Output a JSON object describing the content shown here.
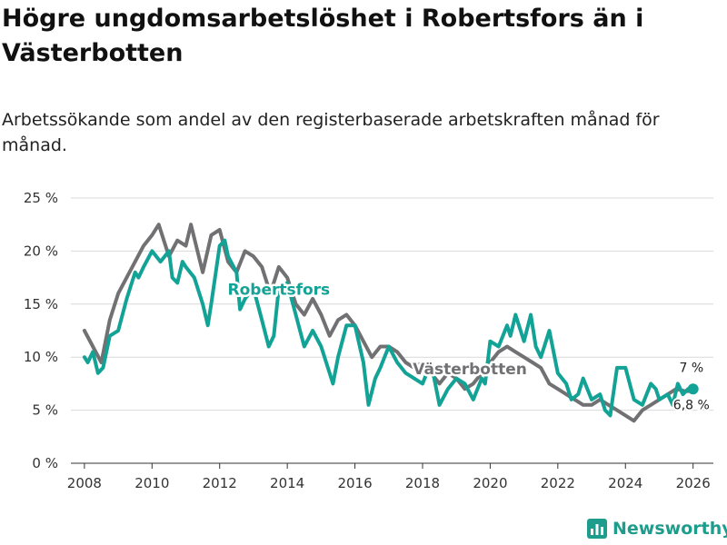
{
  "title": "Högre ungdomsarbetslöshet i Robertsfors än i Västerbotten",
  "subtitle": "Arbetssökande som andel av den registerbaserade arbetskraften månad för månad.",
  "brand": {
    "name": "Newsworthy",
    "icon": "bar-chart-logo-icon"
  },
  "colors": {
    "robertsfors": "#13a396",
    "vasterbotten": "#717073",
    "grid": "#d9d9d9",
    "axis": "#333333"
  },
  "chart_data": {
    "type": "line",
    "title": "Högre ungdomsarbetslöshet i Robertsfors än i Västerbotten",
    "xlabel": "",
    "ylabel": "",
    "xlim": [
      2007.6,
      2026.6
    ],
    "ylim": [
      0,
      25
    ],
    "x_ticks": [
      2008,
      2010,
      2012,
      2014,
      2016,
      2018,
      2020,
      2022,
      2024,
      2026
    ],
    "x_tick_labels": [
      "2008",
      "2010",
      "2012",
      "2014",
      "2016",
      "2018",
      "2020",
      "2022",
      "2024",
      "2026"
    ],
    "y_ticks": [
      0,
      5,
      10,
      15,
      20,
      25
    ],
    "y_tick_labels": [
      "0 %",
      "5 %",
      "10 %",
      "15 %",
      "20 %",
      "25 %"
    ],
    "grid": true,
    "legend": "inline labels",
    "series": [
      {
        "name": "Västerbotten",
        "key": "vasterbotten",
        "label": "Västerbotten",
        "end_label": "6,8 %",
        "x": [
          2008.0,
          2008.25,
          2008.5,
          2008.75,
          2009.0,
          2009.25,
          2009.5,
          2009.75,
          2010.0,
          2010.2,
          2010.5,
          2010.75,
          2011.0,
          2011.15,
          2011.5,
          2011.75,
          2012.0,
          2012.25,
          2012.5,
          2012.75,
          2013.0,
          2013.25,
          2013.5,
          2013.75,
          2014.0,
          2014.25,
          2014.5,
          2014.75,
          2015.0,
          2015.25,
          2015.5,
          2015.75,
          2016.0,
          2016.25,
          2016.5,
          2016.75,
          2017.0,
          2017.25,
          2017.5,
          2017.75,
          2018.0,
          2018.25,
          2018.5,
          2018.75,
          2019.0,
          2019.25,
          2019.5,
          2019.75,
          2020.0,
          2020.25,
          2020.5,
          2020.75,
          2021.0,
          2021.25,
          2021.5,
          2021.75,
          2022.0,
          2022.25,
          2022.5,
          2022.75,
          2023.0,
          2023.25,
          2023.5,
          2023.75,
          2024.0,
          2024.25,
          2024.5,
          2024.75,
          2025.0,
          2025.25,
          2025.5,
          2025.75,
          2026.0
        ],
        "values": [
          12.5,
          11.0,
          9.5,
          13.5,
          16.0,
          17.5,
          19.0,
          20.5,
          21.5,
          22.5,
          19.5,
          21.0,
          20.5,
          22.5,
          18.0,
          21.5,
          22.0,
          19.0,
          18.0,
          20.0,
          19.5,
          18.5,
          16.0,
          18.5,
          17.5,
          15.0,
          14.0,
          15.5,
          14.0,
          12.0,
          13.5,
          14.0,
          13.0,
          11.5,
          10.0,
          11.0,
          11.0,
          10.5,
          9.5,
          9.0,
          9.5,
          8.5,
          7.5,
          8.5,
          8.0,
          7.0,
          7.5,
          8.5,
          9.5,
          10.5,
          11.0,
          10.5,
          10.0,
          9.5,
          9.0,
          7.5,
          7.0,
          6.5,
          6.0,
          5.5,
          5.5,
          6.0,
          5.5,
          5.0,
          4.5,
          4.0,
          5.0,
          5.5,
          6.0,
          6.5,
          7.0,
          6.8,
          6.8
        ]
      },
      {
        "name": "Robertsfors",
        "key": "robertsfors",
        "label": "Robertsfors",
        "end_label": "7 %",
        "x": [
          2008.0,
          2008.1,
          2008.25,
          2008.4,
          2008.55,
          2008.75,
          2009.0,
          2009.25,
          2009.5,
          2009.6,
          2009.75,
          2010.0,
          2010.25,
          2010.5,
          2010.6,
          2010.75,
          2010.9,
          2011.0,
          2011.25,
          2011.5,
          2011.65,
          2011.75,
          2012.0,
          2012.15,
          2012.25,
          2012.5,
          2012.6,
          2012.75,
          2013.0,
          2013.25,
          2013.45,
          2013.6,
          2013.75,
          2014.0,
          2014.25,
          2014.5,
          2014.75,
          2015.0,
          2015.25,
          2015.35,
          2015.5,
          2015.75,
          2016.0,
          2016.25,
          2016.4,
          2016.6,
          2016.75,
          2017.0,
          2017.25,
          2017.5,
          2017.75,
          2018.0,
          2018.25,
          2018.5,
          2018.75,
          2019.0,
          2019.25,
          2019.5,
          2019.75,
          2019.85,
          2020.0,
          2020.25,
          2020.5,
          2020.6,
          2020.75,
          2021.0,
          2021.2,
          2021.35,
          2021.5,
          2021.75,
          2022.0,
          2022.25,
          2022.4,
          2022.6,
          2022.75,
          2023.0,
          2023.25,
          2023.4,
          2023.55,
          2023.75,
          2024.0,
          2024.25,
          2024.5,
          2024.75,
          2024.9,
          2025.0,
          2025.25,
          2025.4,
          2025.55,
          2025.7,
          2025.85,
          2026.0
        ],
        "values": [
          10.0,
          9.5,
          10.5,
          8.5,
          9.0,
          12.0,
          12.5,
          15.5,
          18.0,
          17.5,
          18.5,
          20.0,
          19.0,
          20.0,
          17.5,
          17.0,
          19.0,
          18.5,
          17.5,
          15.0,
          13.0,
          15.0,
          20.5,
          21.0,
          19.5,
          18.0,
          14.5,
          15.5,
          16.5,
          13.5,
          11.0,
          12.0,
          16.5,
          17.0,
          14.0,
          11.0,
          12.5,
          11.0,
          8.5,
          7.5,
          10.0,
          13.0,
          13.0,
          9.5,
          5.5,
          8.0,
          9.0,
          11.0,
          9.5,
          8.5,
          8.0,
          7.5,
          9.5,
          5.5,
          7.0,
          8.0,
          7.5,
          6.0,
          8.0,
          7.5,
          11.5,
          11.0,
          13.0,
          12.0,
          14.0,
          11.5,
          14.0,
          11.0,
          10.0,
          12.5,
          8.5,
          7.5,
          6.0,
          6.5,
          8.0,
          6.0,
          6.5,
          5.0,
          4.5,
          9.0,
          9.0,
          6.0,
          5.5,
          7.5,
          7.0,
          6.0,
          6.5,
          5.5,
          7.5,
          6.5,
          7.0,
          7.0
        ]
      }
    ]
  }
}
